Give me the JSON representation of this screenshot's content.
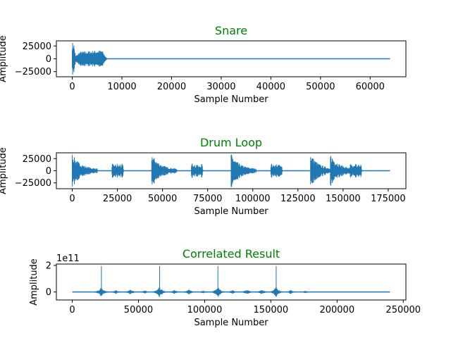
{
  "colors": {
    "series": "#1f77b4",
    "title": "#008000"
  },
  "chart_data": [
    {
      "type": "line",
      "title": "Snare",
      "xlabel": "Sample Number",
      "ylabel": "Amplitude",
      "xlim": [
        -3200,
        67200
      ],
      "ylim": [
        -35000,
        35000
      ],
      "xticks": [
        0,
        10000,
        20000,
        30000,
        40000,
        50000,
        60000
      ],
      "xtick_labels": [
        "0",
        "10000",
        "20000",
        "30000",
        "40000",
        "50000",
        "60000"
      ],
      "yticks": [
        25000,
        0,
        -25000
      ],
      "ytick_labels": [
        "25000",
        "0",
        "−25000"
      ],
      "offset_text": "",
      "series": [
        {
          "envelope": [
            {
              "x": 0,
              "ymin": -32000,
              "ymax": 32000
            },
            {
              "x": 300,
              "ymin": -32000,
              "ymax": 32000
            },
            {
              "x": 700,
              "ymin": -5000,
              "ymax": 5000
            },
            {
              "x": 1500,
              "ymin": -14000,
              "ymax": 14000
            },
            {
              "x": 6000,
              "ymin": -16000,
              "ymax": 17000
            },
            {
              "x": 6700,
              "ymin": -5000,
              "ymax": 5000
            },
            {
              "x": 7000,
              "ymin": 0,
              "ymax": 0
            },
            {
              "x": 64000,
              "ymin": 0,
              "ymax": 0
            }
          ]
        }
      ]
    },
    {
      "type": "line",
      "title": "Drum Loop",
      "xlabel": "Sample Number",
      "ylabel": "Amplitude",
      "xlim": [
        -8800,
        184800
      ],
      "ylim": [
        -37000,
        37000
      ],
      "xticks": [
        0,
        25000,
        50000,
        75000,
        100000,
        125000,
        150000,
        175000
      ],
      "xtick_labels": [
        "0",
        "25000",
        "50000",
        "75000",
        "100000",
        "125000",
        "150000",
        "175000"
      ],
      "yticks": [
        25000,
        0,
        -25000
      ],
      "ytick_labels": [
        "25000",
        "0",
        "−25000"
      ],
      "offset_text": "",
      "series": [
        {
          "hits": [
            {
              "x": 0,
              "amp": 32000,
              "len": 14000,
              "kind": "kick"
            },
            {
              "x": 22000,
              "amp": 15000,
              "len": 6500,
              "kind": "snare"
            },
            {
              "x": 44000,
              "amp": 32000,
              "len": 14000,
              "kind": "kick"
            },
            {
              "x": 66000,
              "amp": 15000,
              "len": 6500,
              "kind": "snare"
            },
            {
              "x": 88000,
              "amp": 32000,
              "len": 14000,
              "kind": "kick"
            },
            {
              "x": 110000,
              "amp": 15000,
              "len": 6500,
              "kind": "snare"
            },
            {
              "x": 132000,
              "amp": 32000,
              "len": 14000,
              "kind": "kick"
            },
            {
              "x": 143000,
              "amp": 32000,
              "len": 14000,
              "kind": "kick"
            },
            {
              "x": 154000,
              "amp": 15000,
              "len": 6500,
              "kind": "snare"
            }
          ],
          "end": 176000
        }
      ]
    },
    {
      "type": "line",
      "title": "Correlated Result",
      "xlabel": "Sample Number",
      "ylabel": "Amplitude",
      "xlim": [
        -12000,
        252000
      ],
      "ylim": [
        -0.6,
        2.1
      ],
      "xticks": [
        0,
        50000,
        100000,
        150000,
        200000,
        250000
      ],
      "xtick_labels": [
        "0",
        "50000",
        "100000",
        "150000",
        "200000",
        "250000"
      ],
      "yticks": [
        2,
        0
      ],
      "ytick_labels": [
        "2",
        "0"
      ],
      "offset_text": "1e11",
      "series": [
        {
          "peaks": [
            {
              "x": 22000,
              "height": 1.95,
              "spread": 0.4
            },
            {
              "x": 66000,
              "height": 1.95,
              "spread": 0.4
            },
            {
              "x": 110000,
              "height": 1.95,
              "spread": 0.4
            },
            {
              "x": 154000,
              "height": 1.95,
              "spread": 0.4
            }
          ],
          "minor": [
            {
              "x": 33000,
              "height": 0.15
            },
            {
              "x": 44000,
              "height": 0.2
            },
            {
              "x": 55000,
              "height": 0.12
            },
            {
              "x": 77000,
              "height": 0.15
            },
            {
              "x": 88000,
              "height": 0.2
            },
            {
              "x": 99000,
              "height": 0.12
            },
            {
              "x": 121000,
              "height": 0.15
            },
            {
              "x": 132000,
              "height": 0.2
            },
            {
              "x": 143000,
              "height": 0.2
            },
            {
              "x": 165000,
              "height": 0.15
            },
            {
              "x": 176000,
              "height": 0.1
            }
          ],
          "end": 240000
        }
      ]
    }
  ]
}
